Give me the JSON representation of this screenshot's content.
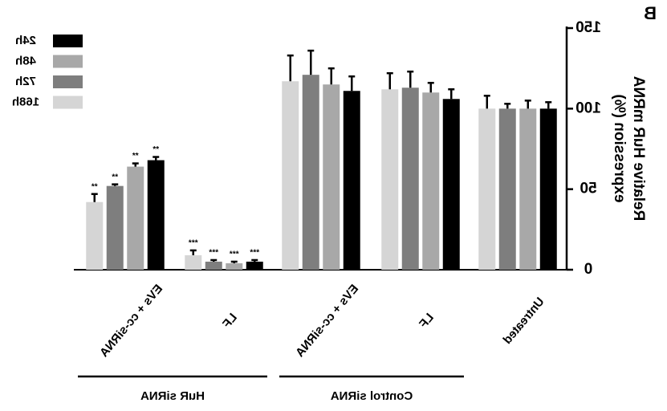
{
  "panel_letter": "B",
  "chart_data": {
    "type": "bar",
    "orientation": "mirrored",
    "ylabel_line1": "Relative HuR mRNA",
    "ylabel_line2": "expression (%)",
    "ylim": [
      0,
      150
    ],
    "yticks": [
      0,
      50,
      100,
      150
    ],
    "grid": false,
    "legend_position": "top-left",
    "categories": [
      "Untreated",
      "LF",
      "EVs + cc-siRNA",
      "LF",
      "EVs + cc-siRNA"
    ],
    "groups": [
      {
        "label": "Control siRNA",
        "categories": [
          "Untreated",
          "LF",
          "EVs + cc-siRNA"
        ]
      },
      {
        "label": "HuR siRNA",
        "categories": [
          "LF",
          "EVs + cc-siRNA"
        ]
      }
    ],
    "series": [
      {
        "name": "24h",
        "color": "#000000",
        "values": [
          100,
          106,
          111,
          5,
          68
        ],
        "errors": [
          4,
          6,
          9,
          1,
          2
        ]
      },
      {
        "name": "48h",
        "color": "#a8a8a8",
        "values": [
          100,
          110,
          115,
          4,
          64
        ],
        "errors": [
          5,
          6,
          10,
          1,
          2
        ]
      },
      {
        "name": "72h",
        "color": "#7e7e7e",
        "values": [
          100,
          113,
          121,
          5,
          52
        ],
        "errors": [
          3,
          10,
          15,
          1,
          1
        ]
      },
      {
        "name": "168h",
        "color": "#d5d5d5",
        "values": [
          100,
          112,
          117,
          9,
          42
        ],
        "errors": [
          8,
          10,
          16,
          3,
          5
        ]
      }
    ],
    "significance": [
      [
        "",
        "",
        "",
        "***",
        "**"
      ],
      [
        "",
        "",
        "",
        "***",
        "**"
      ],
      [
        "",
        "",
        "",
        "***",
        "**"
      ],
      [
        "",
        "",
        "",
        "***",
        "**"
      ]
    ]
  }
}
